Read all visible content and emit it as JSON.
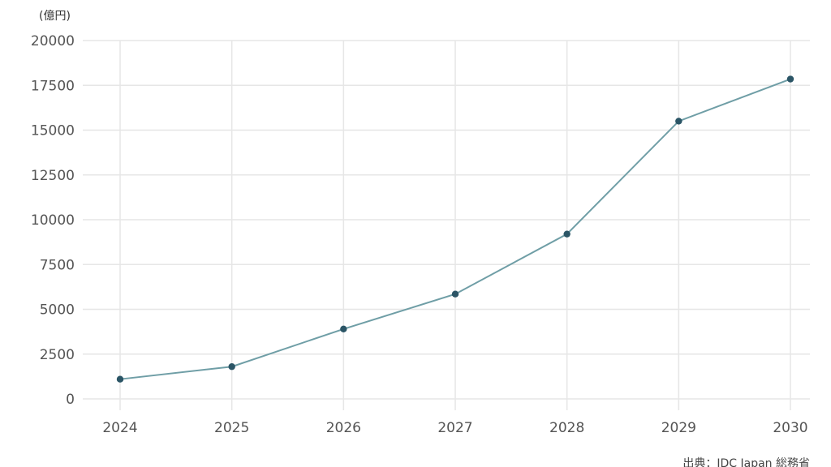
{
  "chart_data": {
    "type": "line",
    "unit_label": "(億円)",
    "source": "出典：IDC Japan 総務省",
    "x": [
      "2024",
      "2025",
      "2026",
      "2027",
      "2028",
      "2029",
      "2030"
    ],
    "series": [
      {
        "values": [
          1100,
          1800,
          3900,
          5850,
          9200,
          15500,
          17850
        ]
      }
    ],
    "y_ticks": [
      "0",
      "2500",
      "5000",
      "7500",
      "10000",
      "12500",
      "15000",
      "17500",
      "20000"
    ],
    "ylim": [
      0,
      20000
    ],
    "grid": true,
    "line_color": "#6f9ea6",
    "marker_color": "#2b5566",
    "grid_color": "#e6e6e6",
    "tick_label_color": "#555555"
  }
}
